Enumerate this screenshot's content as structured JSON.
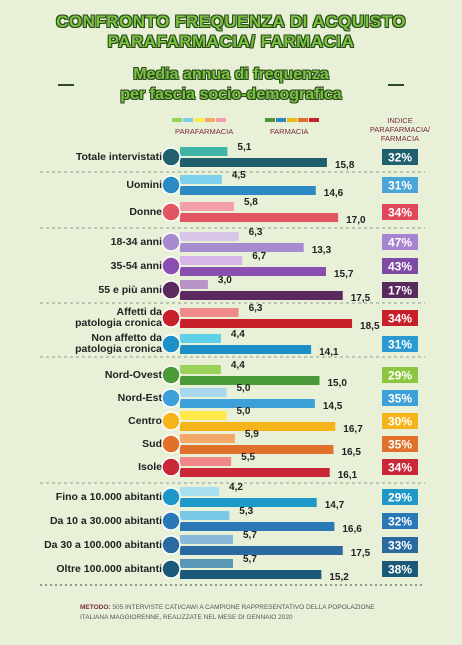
{
  "header": {
    "title_line1": "CONFRONTO FREQUENZA DI ACQUISTO",
    "title_line2": "PARAFARMACIA/ FARMACIA",
    "subtitle_line1": "Media annua di frequenza",
    "subtitle_line2": "per fascia socio-demografica"
  },
  "chart_data": {
    "type": "paired-bar",
    "categories": [
      "Totale intervistati",
      "Uomini",
      "Donne",
      "18-34 anni",
      "35-54 anni",
      "55 e più anni",
      "Affetti da\npatologia cronica",
      "Non affetto da\npatologia cronica",
      "Nord-Ovest",
      "Nord-Est",
      "Centro",
      "Sud",
      "Isole",
      "Fino a 10.000 abitanti",
      "Da 10 a 30.000 abitanti",
      "Da 30 a 100.000 abitanti",
      "Oltre 100.000 abitanti"
    ],
    "series": [
      {
        "name": "PARAFARMACIA",
        "values": [
          5.1,
          4.5,
          5.8,
          6.3,
          6.7,
          3.0,
          6.3,
          4.4,
          4.4,
          5.0,
          5.0,
          5.9,
          5.5,
          4.2,
          5.3,
          5.7,
          5.7
        ],
        "value_labels": [
          "5,1",
          "4,5",
          "5,8",
          "6,3",
          "6,7",
          "3,0",
          "6,3",
          "4,4",
          "4,4",
          "5,0",
          "5,0",
          "5,9",
          "5,5",
          "4,2",
          "5,3",
          "5,7",
          "5,7"
        ],
        "colors": [
          "#3fb5a8",
          "#7dd0ec",
          "#f4a0a8",
          "#d8c6ea",
          "#d7b5e6",
          "#b894c8",
          "#f08a8a",
          "#5fd0e8",
          "#9bd35a",
          "#a8d8f0",
          "#ffe84a",
          "#f4a868",
          "#f08888",
          "#a8e0f0",
          "#7ac8e8",
          "#8ab8d8",
          "#5a98b8"
        ]
      },
      {
        "name": "FARMACIA",
        "values": [
          15.8,
          14.6,
          17.0,
          13.3,
          15.7,
          17.5,
          18.5,
          14.1,
          15.0,
          14.5,
          16.7,
          16.5,
          16.1,
          14.7,
          16.6,
          17.5,
          15.2
        ],
        "value_labels": [
          "15,8",
          "14,6",
          "17,0",
          "13,3",
          "15,7",
          "17,5",
          "18,5",
          "14,1",
          "15,0",
          "14,5",
          "16,7",
          "16,5",
          "16,1",
          "14,7",
          "16,6",
          "17,5",
          "15,2"
        ],
        "colors": [
          "#1f5f6e",
          "#2b8ac4",
          "#e25664",
          "#a78bcf",
          "#8a4fb0",
          "#5a2a5e",
          "#c8202a",
          "#1e90c8",
          "#4a9a3a",
          "#3ea0d8",
          "#f5b51a",
          "#e0702a",
          "#c82838",
          "#1e98c8",
          "#2a78b8",
          "#2a6aa0",
          "#1a5a78"
        ]
      },
      {
        "name": "INDICE PARAFARMACIA/ FARMACIA",
        "values": [
          32,
          31,
          34,
          47,
          43,
          17,
          34,
          31,
          29,
          35,
          30,
          35,
          34,
          29,
          32,
          33,
          38
        ],
        "value_labels": [
          "32%",
          "31%",
          "34%",
          "47%",
          "43%",
          "17%",
          "34%",
          "31%",
          "29%",
          "35%",
          "30%",
          "35%",
          "34%",
          "29%",
          "32%",
          "33%",
          "38%"
        ],
        "colors": [
          "#1f5f6e",
          "#4aa5d8",
          "#e0475a",
          "#a784cf",
          "#7f4aa5",
          "#5a2a5e",
          "#c8202a",
          "#2a9ad0",
          "#8cc63f",
          "#3ea0d8",
          "#f5b51a",
          "#e0702a",
          "#c82838",
          "#1e98c8",
          "#2a78b8",
          "#2a6aa0",
          "#1a5a78"
        ]
      }
    ]
  },
  "footer": {
    "method_label": "METODO:",
    "method_text": "505 INTERVISTE CATI/CAWI A CAMPIONE RAPPRESENTATIVO DELLA POPOLAZIONE ITALIANA MAGGIORENNE, REALIZZATE NEL MESE DI GENNAIO 2020"
  }
}
